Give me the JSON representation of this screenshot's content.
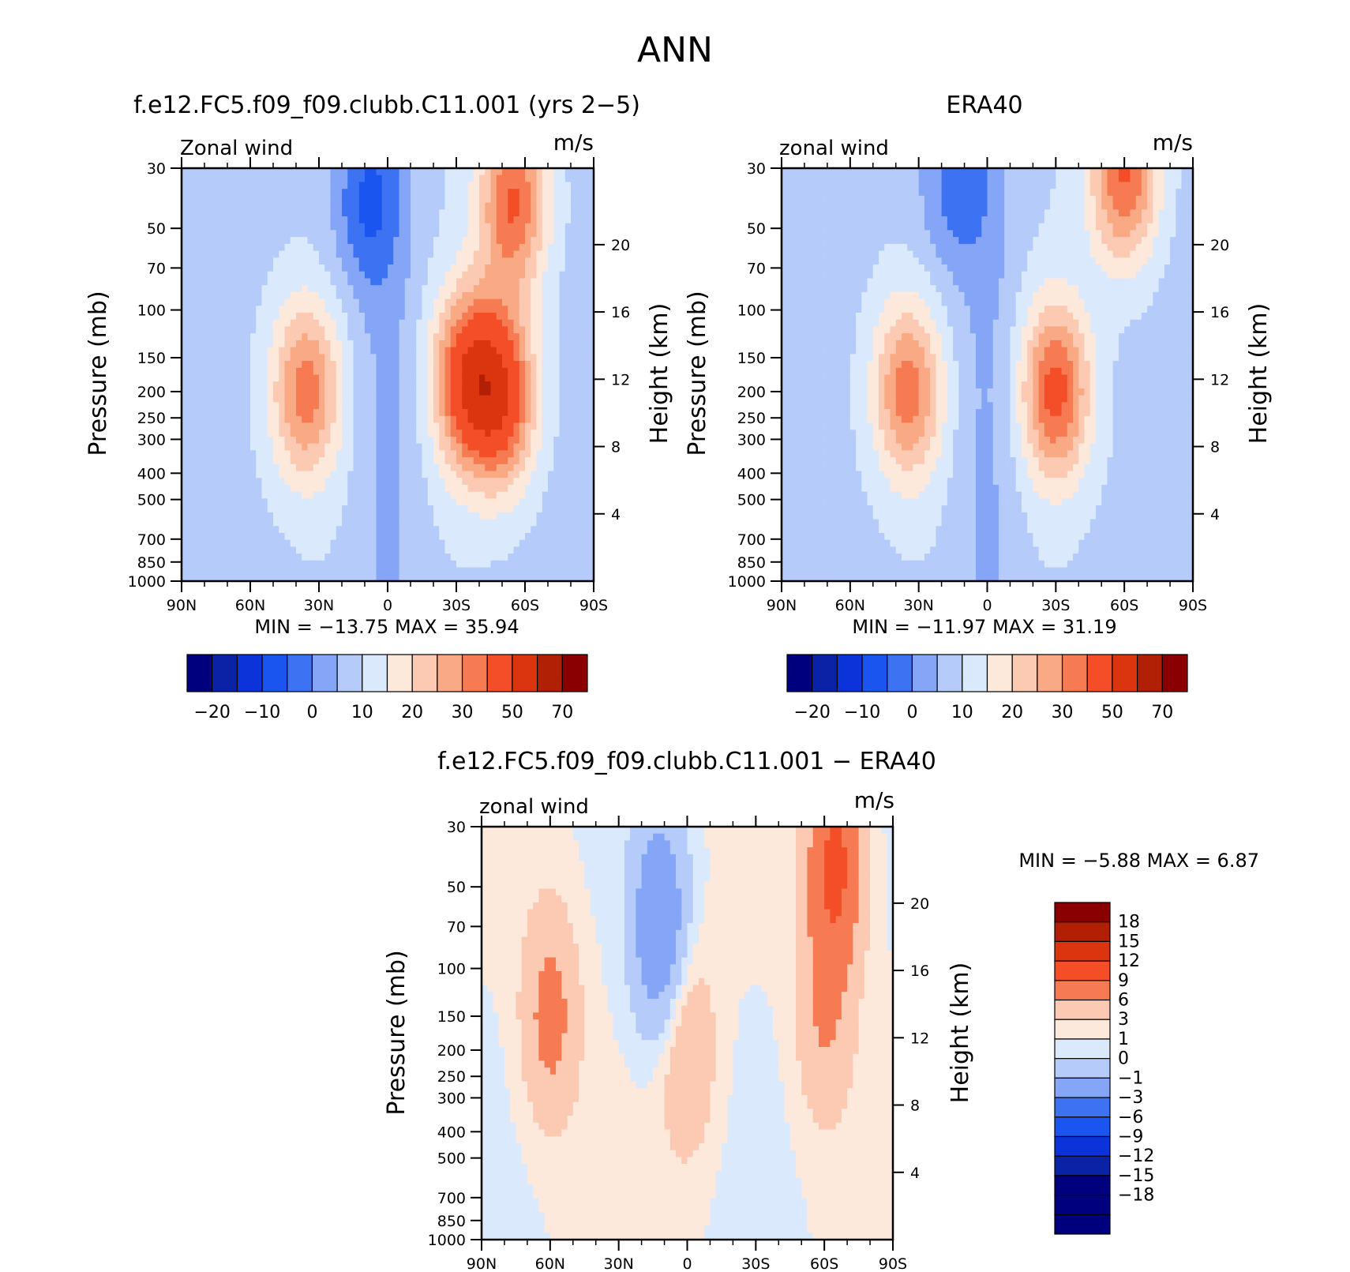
{
  "page_title": "ANN",
  "chart_data": [
    {
      "type": "heatmap",
      "id": "model",
      "title": "f.e12.FC5.f09_f09.clubb.C11.001 (yrs 2−5)",
      "left_label": "Zonal wind",
      "right_label": "m/s",
      "ylabel": "Pressure (mb)",
      "ylabel2": "Height (km)",
      "xticks": [
        "90N",
        "60N",
        "30N",
        "0",
        "30S",
        "60S",
        "90S"
      ],
      "yticks": [
        "30",
        "50",
        "70",
        "100",
        "150",
        "200",
        "250",
        "300",
        "400",
        "500",
        "700",
        "850",
        "1000"
      ],
      "height_ticks": [
        "20",
        "16",
        "12",
        "8",
        "4"
      ],
      "ylim": [
        1000,
        30
      ],
      "xlim": [
        90,
        -90
      ],
      "stats": "MIN =  −13.75   MAX =   35.94",
      "min": -13.75,
      "max": 35.94,
      "colorbar": {
        "orientation": "horizontal",
        "labels": [
          "−20",
          "−10",
          "0",
          "10",
          "20",
          "30",
          "50",
          "70"
        ],
        "colors": [
          "#00007f",
          "#0a22a6",
          "#0b33d9",
          "#1a55f0",
          "#3d73f2",
          "#85a5f7",
          "#b5cbfa",
          "#dbe9fd",
          "#fde9dc",
          "#fccab3",
          "#f9a983",
          "#f67a52",
          "#f44e28",
          "#db3510",
          "#b11f05",
          "#8a0000"
        ]
      },
      "jets": [
        {
          "lat": 36,
          "p": 200,
          "peak": 26
        },
        {
          "lat": -35,
          "p": 180,
          "peak": 34
        },
        {
          "lat": -50,
          "p": 210,
          "peak": 33
        },
        {
          "lat": -55,
          "p": 40,
          "peak": 30
        },
        {
          "lat": 10,
          "p": 40,
          "peak": -14
        }
      ]
    },
    {
      "type": "heatmap",
      "id": "obs",
      "title": "ERA40",
      "left_label": "zonal wind",
      "right_label": "m/s",
      "ylabel": "Pressure (mb)",
      "ylabel2": "Height (km)",
      "xticks": [
        "90N",
        "60N",
        "30N",
        "0",
        "30S",
        "60S",
        "90S"
      ],
      "yticks": [
        "30",
        "50",
        "70",
        "100",
        "150",
        "200",
        "250",
        "300",
        "400",
        "500",
        "700",
        "850",
        "1000"
      ],
      "height_ticks": [
        "20",
        "16",
        "12",
        "8",
        "4"
      ],
      "ylim": [
        1000,
        30
      ],
      "xlim": [
        90,
        -90
      ],
      "stats": "MIN =  −11.97   MAX =   31.19",
      "min": -11.97,
      "max": 31.19,
      "colorbar": {
        "orientation": "horizontal",
        "labels": [
          "−20",
          "−10",
          "0",
          "10",
          "20",
          "30",
          "50",
          "70"
        ],
        "colors": [
          "#00007f",
          "#0a22a6",
          "#0b33d9",
          "#1a55f0",
          "#3d73f2",
          "#85a5f7",
          "#b5cbfa",
          "#dbe9fd",
          "#fde9dc",
          "#fccab3",
          "#f9a983",
          "#f67a52",
          "#f44e28",
          "#db3510",
          "#b11f05",
          "#8a0000"
        ]
      },
      "jets": [
        {
          "lat": 35,
          "p": 200,
          "peak": 26
        },
        {
          "lat": -30,
          "p": 200,
          "peak": 31
        },
        {
          "lat": -60,
          "p": 32,
          "peak": 30
        },
        {
          "lat": 15,
          "p": 35,
          "peak": -12
        }
      ]
    },
    {
      "type": "heatmap",
      "id": "diff",
      "title": "f.e12.FC5.f09_f09.clubb.C11.001 − ERA40",
      "left_label": "zonal wind",
      "right_label": "m/s",
      "ylabel": "Pressure (mb)",
      "ylabel2": "Height (km)",
      "xticks": [
        "90N",
        "60N",
        "30N",
        "0",
        "30S",
        "60S",
        "90S"
      ],
      "yticks": [
        "30",
        "50",
        "70",
        "100",
        "150",
        "200",
        "250",
        "300",
        "400",
        "500",
        "700",
        "850",
        "1000"
      ],
      "height_ticks": [
        "20",
        "16",
        "12",
        "8",
        "4"
      ],
      "ylim": [
        1000,
        30
      ],
      "xlim": [
        90,
        -90
      ],
      "stats": "MIN =    −5.88   MAX =     6.87",
      "min": -5.88,
      "max": 6.87,
      "colorbar": {
        "orientation": "vertical",
        "labels": [
          "18",
          "15",
          "12",
          "9",
          "6",
          "3",
          "1",
          "0",
          "−1",
          "−3",
          "−6",
          "−9",
          "−12",
          "−15",
          "−18"
        ],
        "colors": [
          "#8a0000",
          "#b11f05",
          "#db3510",
          "#f44e28",
          "#f67a52",
          "#fccab3",
          "#fde9dc",
          "#dbe9fd",
          "#b5cbfa",
          "#85a5f7",
          "#3d73f2",
          "#1a55f0",
          "#0b33d9",
          "#0a22a6",
          "#00007f"
        ]
      },
      "jets": [
        {
          "lat": 60,
          "p": 150,
          "peak": 4
        },
        {
          "lat": -65,
          "p": 40,
          "peak": 6.8
        },
        {
          "lat": -60,
          "p": 150,
          "peak": 3
        },
        {
          "lat": 0,
          "p": 200,
          "peak": 3
        },
        {
          "lat": 12,
          "p": 70,
          "peak": -5.9
        }
      ]
    }
  ]
}
